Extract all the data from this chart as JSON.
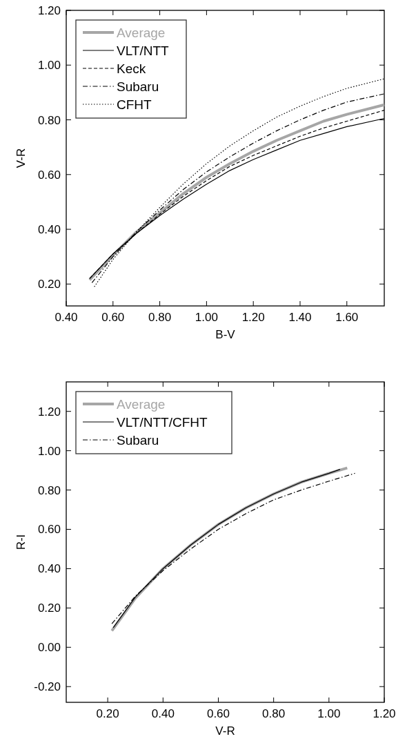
{
  "chart_data": [
    {
      "type": "line",
      "xlabel": "B-V",
      "ylabel": "V-R",
      "xlim": [
        0.4,
        1.76
      ],
      "ylim": [
        0.12,
        1.2
      ],
      "xticks": [
        {
          "value": 0.4,
          "label": "0.40"
        },
        {
          "value": 0.6,
          "label": "0.60"
        },
        {
          "value": 0.8,
          "label": "0.80"
        },
        {
          "value": 1.0,
          "label": "1.00"
        },
        {
          "value": 1.2,
          "label": "1.20"
        },
        {
          "value": 1.4,
          "label": "1.40"
        },
        {
          "value": 1.6,
          "label": "1.60"
        }
      ],
      "yticks": [
        {
          "value": 0.2,
          "label": "0.20"
        },
        {
          "value": 0.4,
          "label": "0.40"
        },
        {
          "value": 0.6,
          "label": "0.60"
        },
        {
          "value": 0.8,
          "label": "0.80"
        },
        {
          "value": 1.0,
          "label": "1.00"
        },
        {
          "value": 1.2,
          "label": "1.20"
        }
      ],
      "grid": false,
      "legend": "top left",
      "marker": "none",
      "series": [
        {
          "name": "Average",
          "color": "#a6a6a6",
          "line_style": "solid",
          "x": [
            0.5,
            0.6,
            0.7,
            0.8,
            0.9,
            1.0,
            1.1,
            1.2,
            1.3,
            1.4,
            1.5,
            1.6,
            1.76
          ],
          "values": [
            0.215,
            0.305,
            0.39,
            0.46,
            0.53,
            0.59,
            0.64,
            0.685,
            0.725,
            0.76,
            0.795,
            0.82,
            0.855
          ]
        },
        {
          "name": "VLT/NTT",
          "color": "#000000",
          "line_style": "solid",
          "x": [
            0.5,
            0.6,
            0.7,
            0.8,
            0.9,
            1.0,
            1.1,
            1.2,
            1.3,
            1.4,
            1.5,
            1.6,
            1.76
          ],
          "values": [
            0.22,
            0.31,
            0.385,
            0.45,
            0.51,
            0.565,
            0.615,
            0.655,
            0.69,
            0.725,
            0.75,
            0.775,
            0.805
          ]
        },
        {
          "name": "Keck",
          "color": "#000000",
          "line_style": "dashed",
          "x": [
            0.5,
            0.6,
            0.7,
            0.8,
            0.9,
            1.0,
            1.1,
            1.2,
            1.3,
            1.4,
            1.5,
            1.6,
            1.76
          ],
          "values": [
            0.22,
            0.31,
            0.385,
            0.455,
            0.52,
            0.578,
            0.63,
            0.67,
            0.705,
            0.74,
            0.77,
            0.795,
            0.835
          ]
        },
        {
          "name": "Subaru",
          "color": "#000000",
          "line_style": "dashdot",
          "x": [
            0.51,
            0.6,
            0.7,
            0.8,
            0.9,
            1.0,
            1.1,
            1.2,
            1.3,
            1.4,
            1.5,
            1.6,
            1.76
          ],
          "values": [
            0.205,
            0.3,
            0.39,
            0.47,
            0.545,
            0.61,
            0.665,
            0.715,
            0.76,
            0.8,
            0.835,
            0.865,
            0.895
          ]
        },
        {
          "name": "CFHT",
          "color": "#000000",
          "line_style": "dotted",
          "x": [
            0.52,
            0.6,
            0.7,
            0.8,
            0.9,
            1.0,
            1.1,
            1.2,
            1.3,
            1.4,
            1.5,
            1.6,
            1.76
          ],
          "values": [
            0.19,
            0.29,
            0.39,
            0.48,
            0.565,
            0.64,
            0.705,
            0.76,
            0.81,
            0.85,
            0.885,
            0.915,
            0.95
          ]
        }
      ]
    },
    {
      "type": "line",
      "xlabel": "V-R",
      "ylabel": "R-I",
      "xlim": [
        0.05,
        1.2
      ],
      "ylim": [
        -0.28,
        1.35
      ],
      "xticks": [
        {
          "value": 0.2,
          "label": "0.20"
        },
        {
          "value": 0.4,
          "label": "0.40"
        },
        {
          "value": 0.6,
          "label": "0.60"
        },
        {
          "value": 0.8,
          "label": "0.80"
        },
        {
          "value": 1.0,
          "label": "1.00"
        },
        {
          "value": 1.2,
          "label": "1.20"
        }
      ],
      "yticks": [
        {
          "value": -0.2,
          "label": "-0.20"
        },
        {
          "value": 0,
          "label": "0.00"
        },
        {
          "value": 0.2,
          "label": "0.20"
        },
        {
          "value": 0.4,
          "label": "0.40"
        },
        {
          "value": 0.6,
          "label": "0.60"
        },
        {
          "value": 0.8,
          "label": "0.80"
        },
        {
          "value": 1.0,
          "label": "1.00"
        },
        {
          "value": 1.2,
          "label": "1.20"
        }
      ],
      "grid": false,
      "legend": "top left",
      "marker": "none",
      "series": [
        {
          "name": "Average",
          "color": "#a6a6a6",
          "line_style": "solid",
          "x": [
            0.215,
            0.3,
            0.4,
            0.5,
            0.6,
            0.7,
            0.8,
            0.9,
            1.0,
            1.066
          ],
          "values": [
            0.084,
            0.25,
            0.4,
            0.52,
            0.625,
            0.71,
            0.78,
            0.84,
            0.885,
            0.912
          ]
        },
        {
          "name": "VLT/NTT/CFHT",
          "color": "#000000",
          "line_style": "solid",
          "x": [
            0.22,
            0.3,
            0.4,
            0.5,
            0.6,
            0.7,
            0.8,
            0.9,
            1.0,
            1.04
          ],
          "values": [
            0.1,
            0.255,
            0.4,
            0.52,
            0.625,
            0.71,
            0.78,
            0.84,
            0.885,
            0.905
          ]
        },
        {
          "name": "Subaru",
          "color": "#000000",
          "line_style": "dashdot",
          "x": [
            0.215,
            0.3,
            0.4,
            0.5,
            0.6,
            0.7,
            0.8,
            0.9,
            1.0,
            1.094
          ],
          "values": [
            0.12,
            0.26,
            0.39,
            0.5,
            0.6,
            0.68,
            0.75,
            0.8,
            0.845,
            0.885
          ]
        }
      ]
    }
  ]
}
